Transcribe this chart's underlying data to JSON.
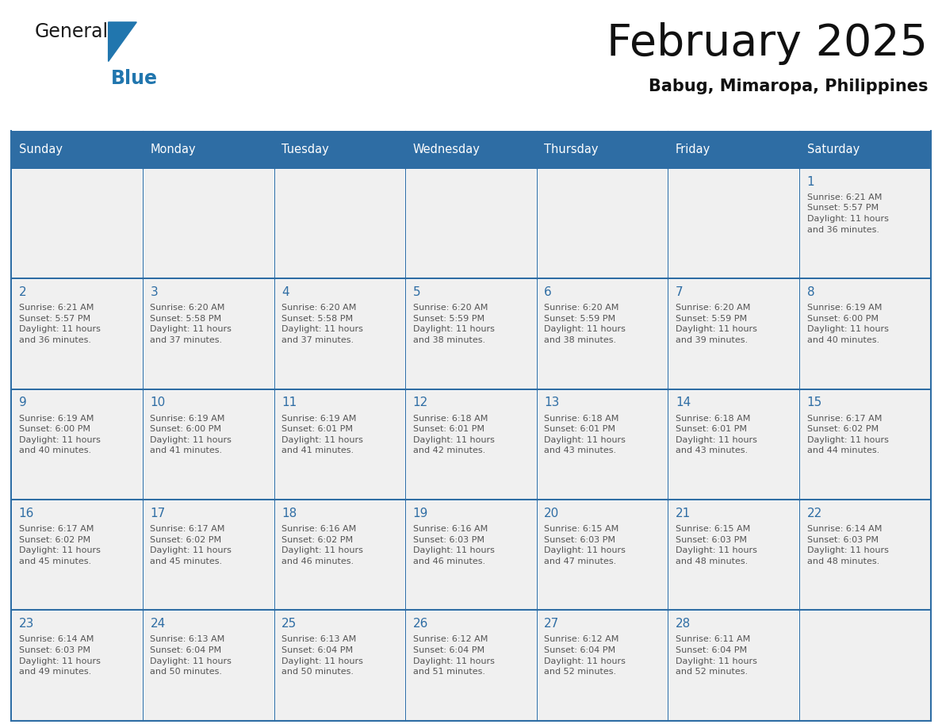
{
  "title": "February 2025",
  "subtitle": "Babug, Mimaropa, Philippines",
  "days_of_week": [
    "Sunday",
    "Monday",
    "Tuesday",
    "Wednesday",
    "Thursday",
    "Friday",
    "Saturday"
  ],
  "header_bg": "#2E6DA4",
  "header_text_color": "#FFFFFF",
  "cell_bg": "#F0F0F0",
  "border_color": "#2E6DA4",
  "day_num_color": "#2E6DA4",
  "text_color": "#555555",
  "logo_general_color": "#1a1a1a",
  "logo_blue_color": "#2176AE",
  "calendar": [
    [
      null,
      null,
      null,
      null,
      null,
      null,
      {
        "day": 1,
        "sunrise": "6:21 AM",
        "sunset": "5:57 PM",
        "daylight": "11 hours\nand 36 minutes."
      }
    ],
    [
      {
        "day": 2,
        "sunrise": "6:21 AM",
        "sunset": "5:57 PM",
        "daylight": "11 hours\nand 36 minutes."
      },
      {
        "day": 3,
        "sunrise": "6:20 AM",
        "sunset": "5:58 PM",
        "daylight": "11 hours\nand 37 minutes."
      },
      {
        "day": 4,
        "sunrise": "6:20 AM",
        "sunset": "5:58 PM",
        "daylight": "11 hours\nand 37 minutes."
      },
      {
        "day": 5,
        "sunrise": "6:20 AM",
        "sunset": "5:59 PM",
        "daylight": "11 hours\nand 38 minutes."
      },
      {
        "day": 6,
        "sunrise": "6:20 AM",
        "sunset": "5:59 PM",
        "daylight": "11 hours\nand 38 minutes."
      },
      {
        "day": 7,
        "sunrise": "6:20 AM",
        "sunset": "5:59 PM",
        "daylight": "11 hours\nand 39 minutes."
      },
      {
        "day": 8,
        "sunrise": "6:19 AM",
        "sunset": "6:00 PM",
        "daylight": "11 hours\nand 40 minutes."
      }
    ],
    [
      {
        "day": 9,
        "sunrise": "6:19 AM",
        "sunset": "6:00 PM",
        "daylight": "11 hours\nand 40 minutes."
      },
      {
        "day": 10,
        "sunrise": "6:19 AM",
        "sunset": "6:00 PM",
        "daylight": "11 hours\nand 41 minutes."
      },
      {
        "day": 11,
        "sunrise": "6:19 AM",
        "sunset": "6:01 PM",
        "daylight": "11 hours\nand 41 minutes."
      },
      {
        "day": 12,
        "sunrise": "6:18 AM",
        "sunset": "6:01 PM",
        "daylight": "11 hours\nand 42 minutes."
      },
      {
        "day": 13,
        "sunrise": "6:18 AM",
        "sunset": "6:01 PM",
        "daylight": "11 hours\nand 43 minutes."
      },
      {
        "day": 14,
        "sunrise": "6:18 AM",
        "sunset": "6:01 PM",
        "daylight": "11 hours\nand 43 minutes."
      },
      {
        "day": 15,
        "sunrise": "6:17 AM",
        "sunset": "6:02 PM",
        "daylight": "11 hours\nand 44 minutes."
      }
    ],
    [
      {
        "day": 16,
        "sunrise": "6:17 AM",
        "sunset": "6:02 PM",
        "daylight": "11 hours\nand 45 minutes."
      },
      {
        "day": 17,
        "sunrise": "6:17 AM",
        "sunset": "6:02 PM",
        "daylight": "11 hours\nand 45 minutes."
      },
      {
        "day": 18,
        "sunrise": "6:16 AM",
        "sunset": "6:02 PM",
        "daylight": "11 hours\nand 46 minutes."
      },
      {
        "day": 19,
        "sunrise": "6:16 AM",
        "sunset": "6:03 PM",
        "daylight": "11 hours\nand 46 minutes."
      },
      {
        "day": 20,
        "sunrise": "6:15 AM",
        "sunset": "6:03 PM",
        "daylight": "11 hours\nand 47 minutes."
      },
      {
        "day": 21,
        "sunrise": "6:15 AM",
        "sunset": "6:03 PM",
        "daylight": "11 hours\nand 48 minutes."
      },
      {
        "day": 22,
        "sunrise": "6:14 AM",
        "sunset": "6:03 PM",
        "daylight": "11 hours\nand 48 minutes."
      }
    ],
    [
      {
        "day": 23,
        "sunrise": "6:14 AM",
        "sunset": "6:03 PM",
        "daylight": "11 hours\nand 49 minutes."
      },
      {
        "day": 24,
        "sunrise": "6:13 AM",
        "sunset": "6:04 PM",
        "daylight": "11 hours\nand 50 minutes."
      },
      {
        "day": 25,
        "sunrise": "6:13 AM",
        "sunset": "6:04 PM",
        "daylight": "11 hours\nand 50 minutes."
      },
      {
        "day": 26,
        "sunrise": "6:12 AM",
        "sunset": "6:04 PM",
        "daylight": "11 hours\nand 51 minutes."
      },
      {
        "day": 27,
        "sunrise": "6:12 AM",
        "sunset": "6:04 PM",
        "daylight": "11 hours\nand 52 minutes."
      },
      {
        "day": 28,
        "sunrise": "6:11 AM",
        "sunset": "6:04 PM",
        "daylight": "11 hours\nand 52 minutes."
      },
      null
    ]
  ]
}
